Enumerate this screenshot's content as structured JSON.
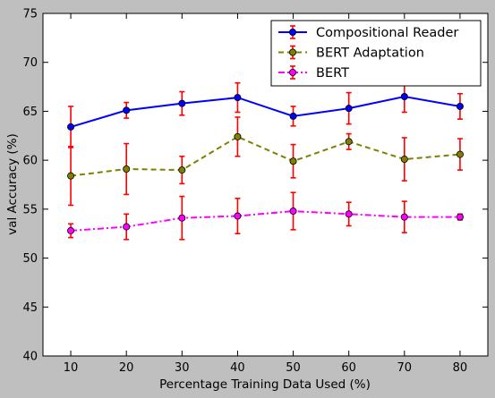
{
  "chart_data": {
    "type": "line",
    "title": "",
    "xlabel": "Percentage Training Data Used (%)",
    "ylabel": "val Accuracy (%)",
    "x": [
      10,
      20,
      30,
      40,
      50,
      60,
      70,
      80
    ],
    "xlim": [
      5,
      85
    ],
    "ylim": [
      40,
      75
    ],
    "xticks": [
      10,
      20,
      30,
      40,
      50,
      60,
      70,
      80
    ],
    "yticks": [
      40,
      45,
      50,
      55,
      60,
      65,
      70,
      75
    ],
    "grid": false,
    "legend_position": "top-right",
    "error_bar_color": "#ff0000",
    "series": [
      {
        "name": "Compositional Reader",
        "color": "#0000ff",
        "marker_fill": "#0000ff",
        "line_style": "solid",
        "values": [
          63.4,
          65.1,
          65.8,
          66.4,
          64.5,
          65.3,
          66.5,
          65.5
        ],
        "errors": [
          2.1,
          0.8,
          1.2,
          1.5,
          1.0,
          1.6,
          1.6,
          1.3
        ]
      },
      {
        "name": "BERT Adaptation",
        "color": "#808000",
        "marker_fill": "#808000",
        "line_style": "dashed",
        "values": [
          58.4,
          59.1,
          59.0,
          62.4,
          59.9,
          61.9,
          60.1,
          60.6
        ],
        "errors": [
          3.0,
          2.6,
          1.4,
          2.0,
          1.7,
          0.8,
          2.2,
          1.6
        ]
      },
      {
        "name": "BERT",
        "color": "#ff00ff",
        "marker_fill": "#ff00ff",
        "line_style": "dashdot",
        "values": [
          52.8,
          53.2,
          54.1,
          54.3,
          54.8,
          54.5,
          54.2,
          54.2
        ],
        "errors": [
          0.7,
          1.3,
          2.2,
          1.8,
          1.9,
          1.2,
          1.6,
          0.3
        ]
      }
    ]
  }
}
